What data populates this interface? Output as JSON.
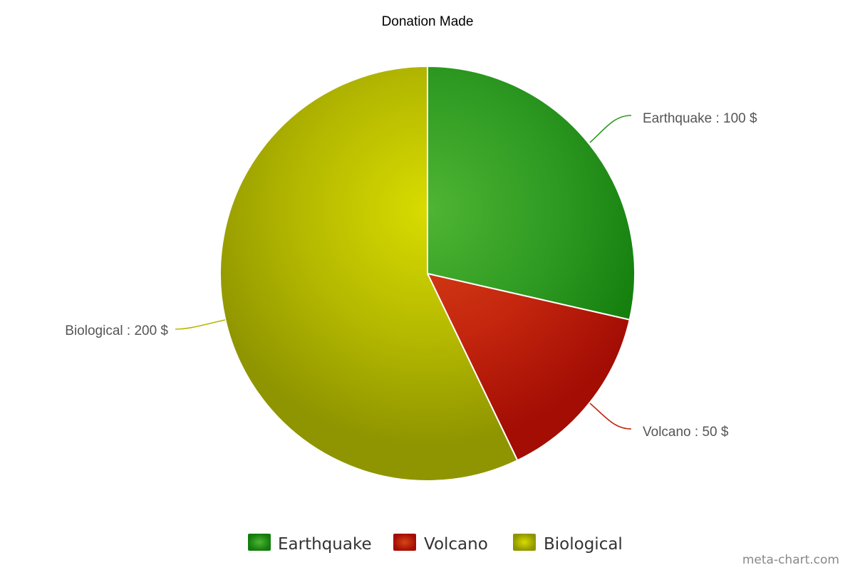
{
  "chart_data": {
    "type": "pie",
    "title": "Donation Made",
    "slices": [
      {
        "name": "Earthquake",
        "value": 100,
        "label": "Earthquake : 100 $",
        "color": "#2e9a22",
        "highlight": "#4fb533",
        "shadow": "#127c0c"
      },
      {
        "name": "Volcano",
        "value": 50,
        "label": "Volcano : 50 $",
        "color": "#c4260e",
        "highlight": "#d84517",
        "shadow": "#a30d04"
      },
      {
        "name": "Biological",
        "value": 200,
        "label": "Biological : 200 $",
        "color": "#b4b800",
        "highlight": "#d8dc00",
        "shadow": "#8f9500"
      }
    ],
    "legend": {
      "position": "bottom",
      "items": [
        "Earthquake",
        "Volcano",
        "Biological"
      ]
    }
  },
  "credit": "meta-chart.com"
}
